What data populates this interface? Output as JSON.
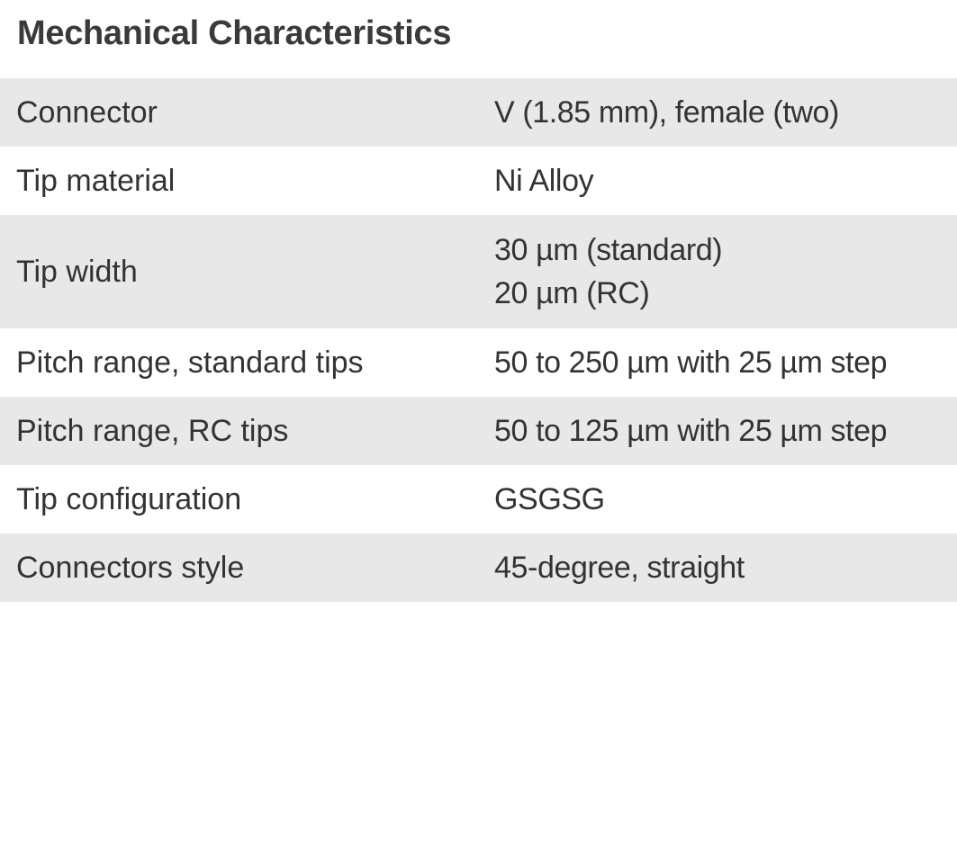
{
  "title": "Mechanical Characteristics",
  "rows": [
    {
      "label": "Connector",
      "value": [
        "V (1.85 mm), female (two)"
      ]
    },
    {
      "label": "Tip material",
      "value": [
        "Ni Alloy"
      ]
    },
    {
      "label": "Tip width",
      "value": [
        "30 µm (standard)",
        "20 µm (RC)"
      ]
    },
    {
      "label": "Pitch range, standard tips",
      "value": [
        "50 to 250 µm  with 25 µm step"
      ]
    },
    {
      "label": "Pitch range, RC tips",
      "value": [
        "50 to 125 µm with 25 µm step"
      ]
    },
    {
      "label": "Tip configuration",
      "value": [
        "GSGSG"
      ]
    },
    {
      "label": "Connectors style",
      "value": [
        "45-degree, straight"
      ]
    }
  ]
}
